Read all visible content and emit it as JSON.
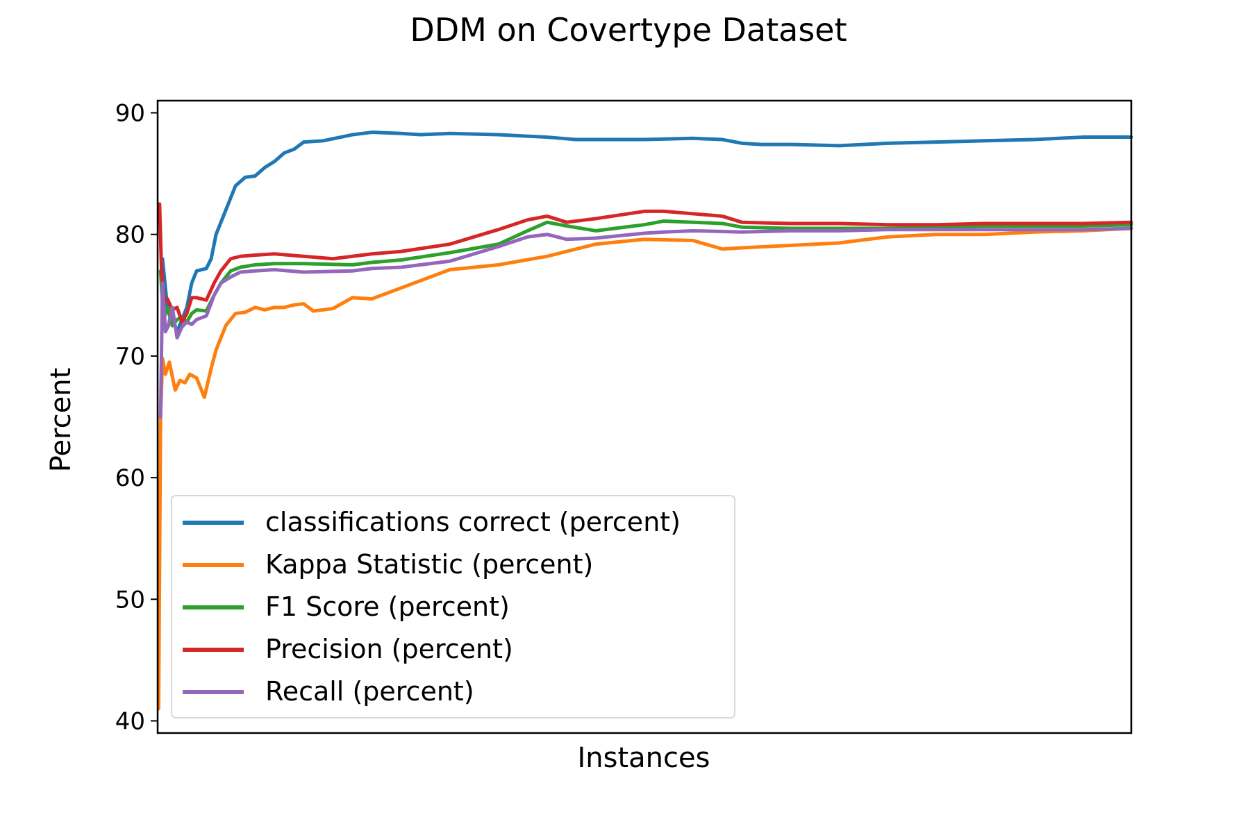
{
  "chart_data": {
    "type": "line",
    "title": "DDM on Covertype Dataset",
    "xlabel": "Instances",
    "ylabel": "Percent",
    "xlim": [
      0,
      100
    ],
    "ylim": [
      39,
      91
    ],
    "yticks": [
      40,
      50,
      60,
      70,
      80,
      90
    ],
    "ytick_labels": [
      "40",
      "50",
      "60",
      "70",
      "80",
      "90"
    ],
    "xticks": [],
    "grid": false,
    "legend_position": "lower-left",
    "series": [
      {
        "name": "classifications correct (percent)",
        "color": "#1f77b4",
        "x": [
          0.5,
          1,
          2,
          3,
          3.5,
          4,
          5,
          5.5,
          6,
          7,
          8,
          9,
          10,
          11,
          12,
          13,
          14,
          15,
          17,
          20,
          22,
          25,
          27,
          30,
          35,
          40,
          43,
          50,
          55,
          58,
          60,
          62,
          65,
          70,
          75,
          80,
          85,
          90,
          95,
          100
        ],
        "values": [
          78,
          74,
          72,
          74,
          76,
          77,
          77.2,
          78,
          80,
          82,
          84,
          84.7,
          84.8,
          85.5,
          86,
          86.7,
          87,
          87.6,
          87.7,
          88.2,
          88.4,
          88.3,
          88.2,
          88.3,
          88.2,
          88,
          87.8,
          87.8,
          87.9,
          87.8,
          87.5,
          87.4,
          87.4,
          87.3,
          87.5,
          87.6,
          87.7,
          87.8,
          88,
          88
        ]
      },
      {
        "name": "Kappa Statistic (percent)",
        "color": "#ff7f0e",
        "x": [
          0.1,
          0.3,
          0.5,
          0.8,
          1.2,
          1.8,
          2.3,
          2.8,
          3.3,
          4,
          4.8,
          5.5,
          6,
          7,
          8,
          9,
          10,
          11,
          12,
          13,
          14,
          15,
          16,
          17,
          18,
          20,
          22,
          23,
          24,
          27,
          30,
          35,
          40,
          45,
          50,
          55,
          58,
          60,
          65,
          70,
          75,
          80,
          85,
          90,
          95,
          100
        ],
        "values": [
          41,
          65,
          69.8,
          68.5,
          69.5,
          67.2,
          68,
          67.8,
          68.5,
          68.2,
          66.6,
          69,
          70.5,
          72.5,
          73.5,
          73.6,
          74,
          73.8,
          74,
          74,
          74.2,
          74.3,
          73.7,
          73.8,
          73.9,
          74.8,
          74.7,
          75,
          75.3,
          76.2,
          77.1,
          77.5,
          78.2,
          79.2,
          79.6,
          79.5,
          78.8,
          78.9,
          79.1,
          79.3,
          79.8,
          80,
          80,
          80.2,
          80.3,
          80.5
        ]
      },
      {
        "name": "F1 Score (percent)",
        "color": "#2ca02c",
        "x": [
          0.3,
          0.6,
          1,
          1.5,
          2,
          2.5,
          3,
          3.5,
          4,
          5,
          5.8,
          6.5,
          7.5,
          8.5,
          10,
          12,
          15,
          20,
          22,
          25,
          30,
          35,
          38,
          40,
          42,
          45,
          50,
          52,
          55,
          58,
          60,
          65,
          70,
          75,
          80,
          85,
          90,
          95,
          100
        ],
        "values": [
          77,
          73,
          74,
          72.5,
          73,
          73.2,
          72.8,
          73.5,
          73.8,
          73.7,
          75,
          76,
          77,
          77.3,
          77.5,
          77.6,
          77.6,
          77.5,
          77.7,
          77.9,
          78.5,
          79.2,
          80.3,
          81,
          80.7,
          80.3,
          80.8,
          81.1,
          81,
          80.9,
          80.6,
          80.5,
          80.5,
          80.5,
          80.6,
          80.7,
          80.7,
          80.7,
          80.8
        ]
      },
      {
        "name": "Precision (percent)",
        "color": "#d62728",
        "x": [
          0.2,
          0.4,
          0.7,
          1,
          1.5,
          2,
          2.5,
          3,
          3.5,
          4,
          5,
          5.8,
          6.5,
          7.5,
          8.5,
          10,
          12,
          15,
          18,
          20,
          22,
          25,
          30,
          35,
          38,
          40,
          42,
          45,
          50,
          52,
          55,
          58,
          60,
          65,
          70,
          75,
          80,
          85,
          90,
          95,
          100
        ],
        "values": [
          82.5,
          77,
          74.5,
          74.7,
          73.8,
          74,
          72.8,
          73.5,
          74.8,
          74.8,
          74.6,
          76,
          77,
          78,
          78.2,
          78.3,
          78.4,
          78.2,
          78,
          78.2,
          78.4,
          78.6,
          79.2,
          80.4,
          81.2,
          81.5,
          81,
          81.3,
          81.9,
          81.9,
          81.7,
          81.5,
          81,
          80.9,
          80.9,
          80.8,
          80.8,
          80.9,
          80.9,
          80.9,
          81
        ]
      },
      {
        "name": "Recall (percent)",
        "color": "#9467bd",
        "x": [
          0.3,
          0.5,
          0.8,
          1.1,
          1.5,
          2,
          2.5,
          3,
          3.5,
          4,
          5,
          5.8,
          6.5,
          7.5,
          8.5,
          10,
          12,
          15,
          20,
          22,
          25,
          30,
          35,
          38,
          40,
          42,
          45,
          50,
          52,
          55,
          60,
          65,
          70,
          75,
          80,
          85,
          90,
          95,
          100
        ],
        "values": [
          65,
          76,
          72,
          72.5,
          74,
          71.5,
          72.4,
          72.8,
          72.6,
          73,
          73.3,
          75,
          76,
          76.5,
          76.9,
          77,
          77.1,
          76.9,
          77,
          77.2,
          77.3,
          77.8,
          79,
          79.8,
          80,
          79.6,
          79.7,
          80.1,
          80.2,
          80.3,
          80.2,
          80.3,
          80.3,
          80.4,
          80.4,
          80.4,
          80.4,
          80.4,
          80.5
        ]
      }
    ]
  }
}
